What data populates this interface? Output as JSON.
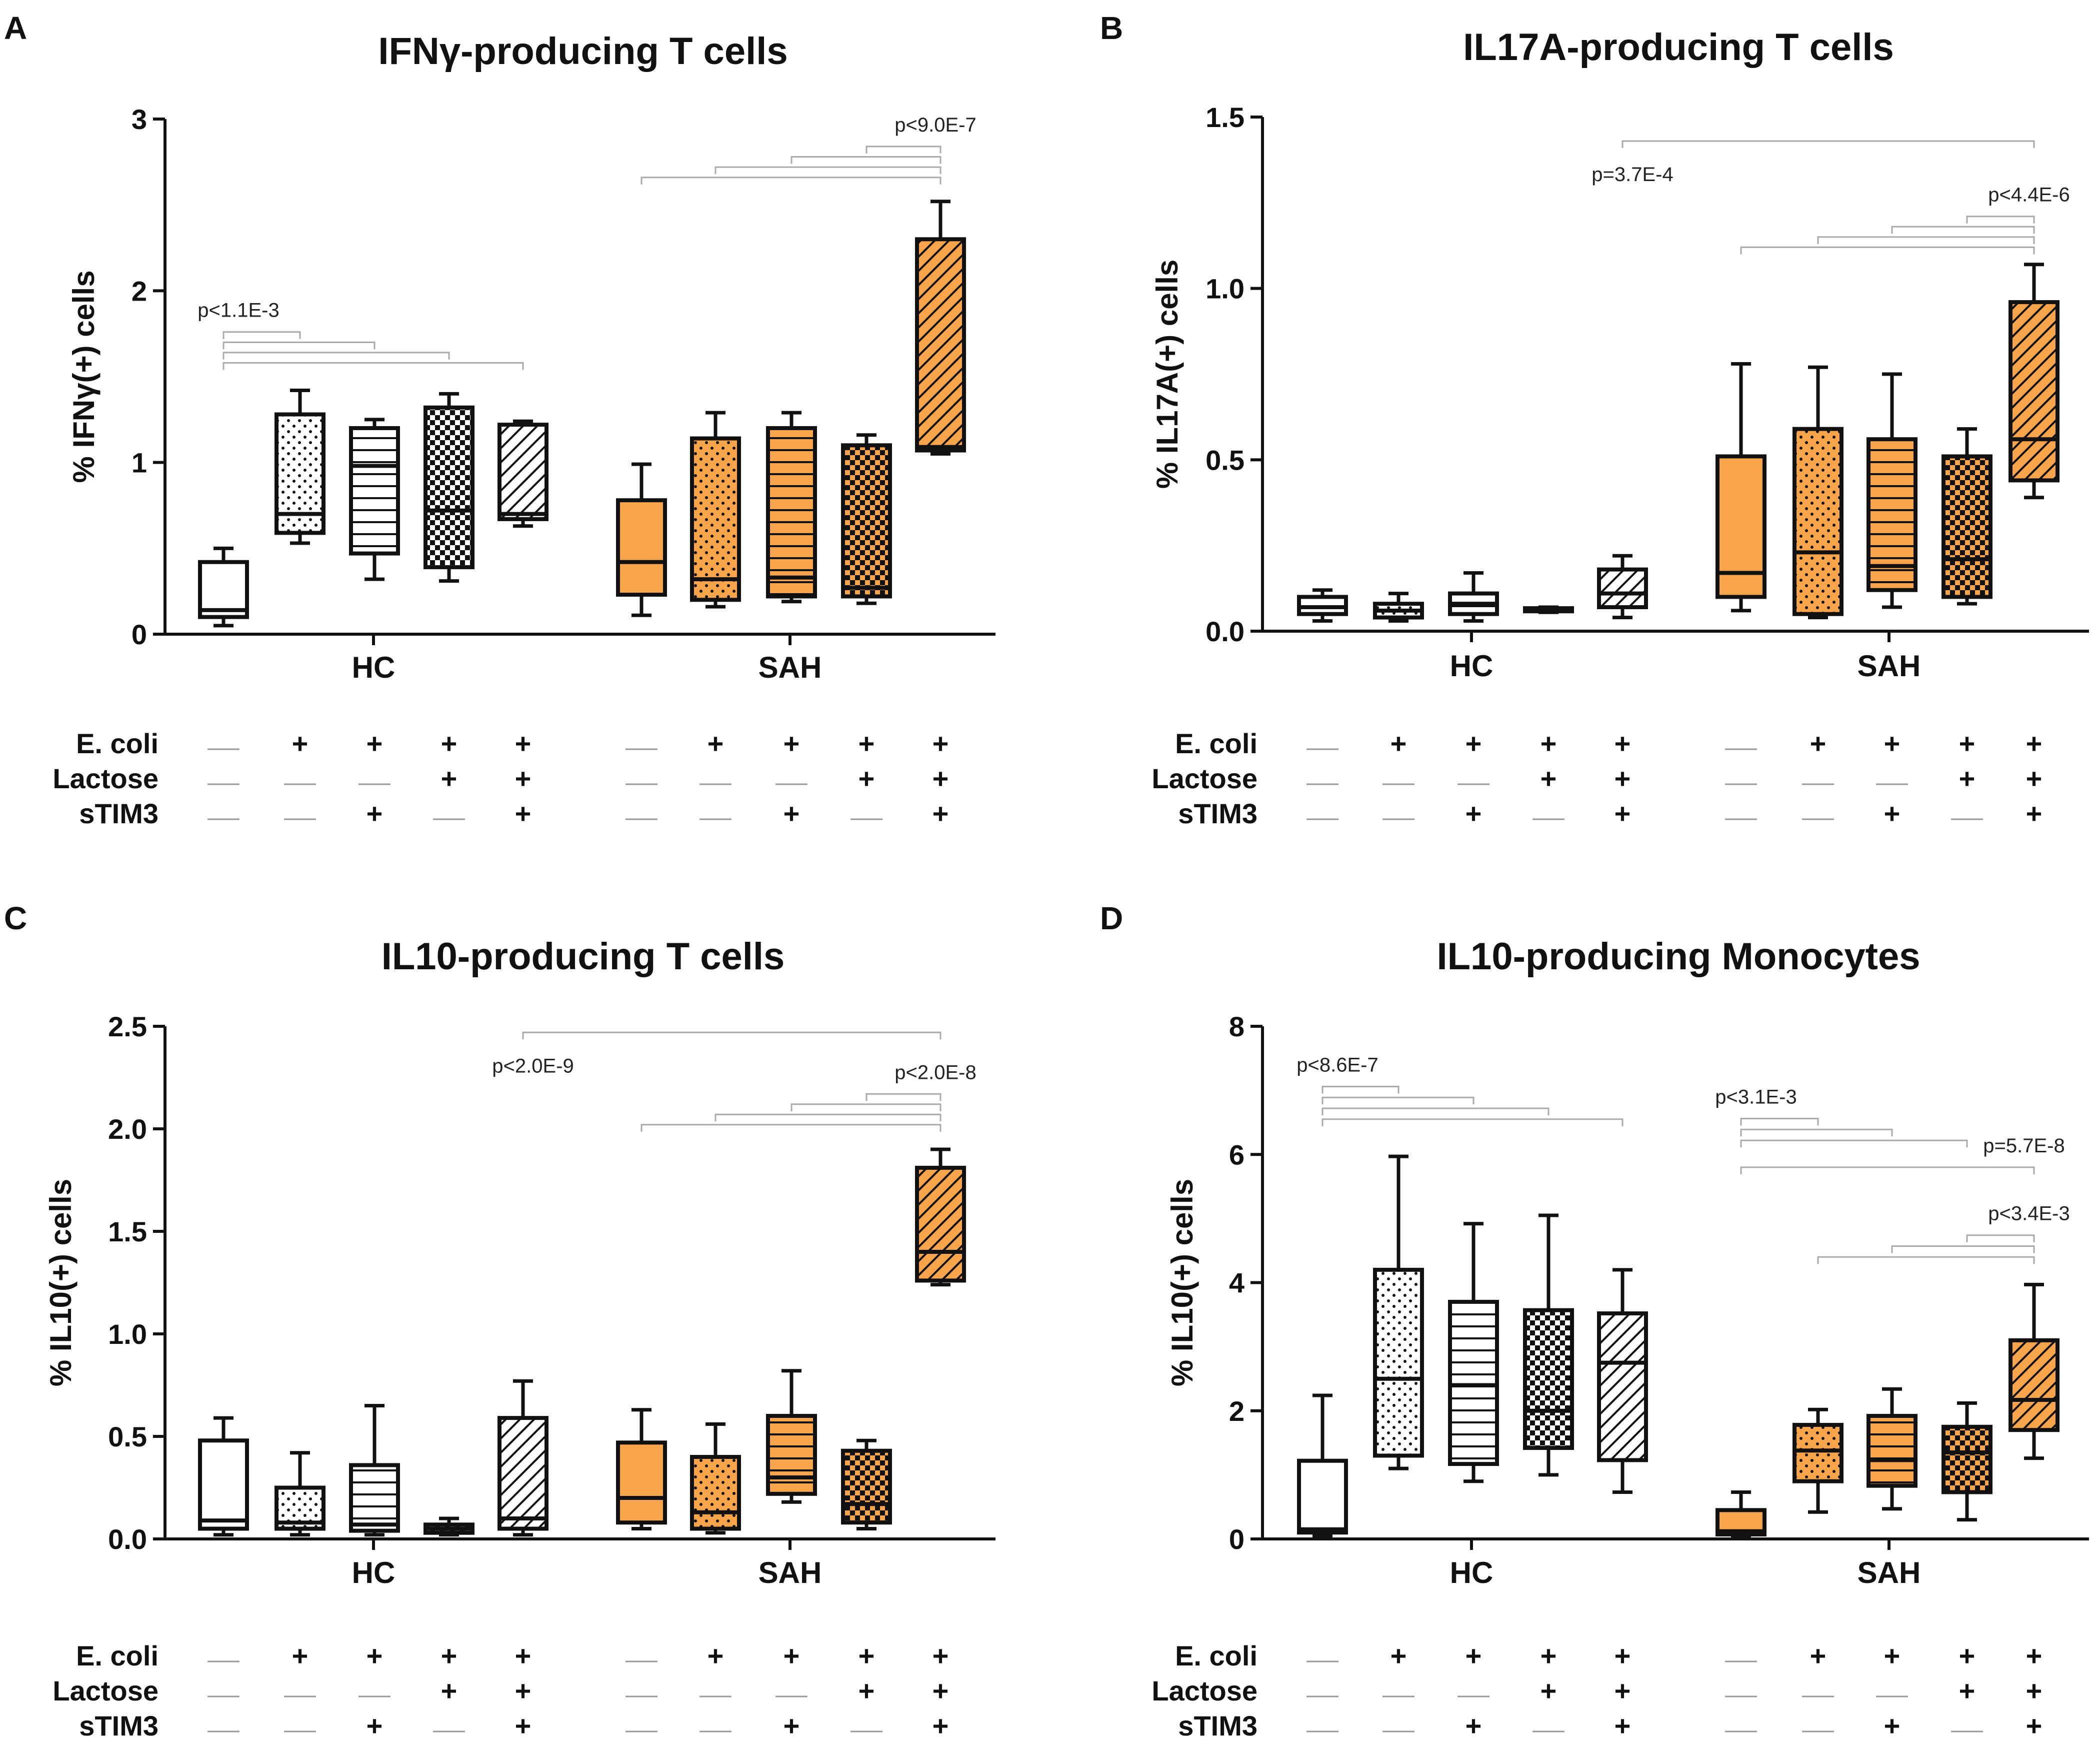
{
  "colors": {
    "hc_fill": "#ffffff",
    "sah_fill": "#f7a44a",
    "stroke": "#111111",
    "bracket": "#aaaaaa"
  },
  "treatments": {
    "labels": [
      "E. coli",
      "Lactose",
      "sTIM3"
    ],
    "symbols": {
      "plus": "+"
    },
    "matrix": [
      [
        0,
        1,
        1,
        1,
        1
      ],
      [
        0,
        0,
        0,
        1,
        1
      ],
      [
        0,
        0,
        1,
        0,
        1
      ]
    ]
  },
  "chart_data": [
    {
      "letter": "A",
      "type": "boxplot",
      "title": "IFNγ-producing T cells",
      "ylabel": "% IFNγ(+) cells",
      "ylim": [
        0,
        3
      ],
      "ticks": [
        0,
        1,
        2,
        3
      ],
      "tick_labels": [
        "0",
        "1",
        "2",
        "3"
      ],
      "groups": [
        "HC",
        "SAH"
      ],
      "patterns": [
        "open",
        "dots",
        "hlines",
        "check",
        "diag"
      ],
      "boxes": {
        "HC": [
          {
            "min": 0.05,
            "q1": 0.1,
            "median": 0.14,
            "q3": 0.42,
            "max": 0.5
          },
          {
            "min": 0.53,
            "q1": 0.59,
            "median": 0.7,
            "q3": 1.28,
            "max": 1.42
          },
          {
            "min": 0.32,
            "q1": 0.47,
            "median": 0.98,
            "q3": 1.2,
            "max": 1.25
          },
          {
            "min": 0.31,
            "q1": 0.39,
            "median": 0.72,
            "q3": 1.32,
            "max": 1.4
          },
          {
            "min": 0.63,
            "q1": 0.67,
            "median": 0.7,
            "q3": 1.22,
            "max": 1.24
          }
        ],
        "SAH": [
          {
            "min": 0.11,
            "q1": 0.23,
            "median": 0.42,
            "q3": 0.78,
            "max": 0.99
          },
          {
            "min": 0.16,
            "q1": 0.2,
            "median": 0.32,
            "q3": 1.14,
            "max": 1.29
          },
          {
            "min": 0.19,
            "q1": 0.22,
            "median": 0.33,
            "q3": 1.2,
            "max": 1.29
          },
          {
            "min": 0.18,
            "q1": 0.22,
            "median": 0.27,
            "q3": 1.1,
            "max": 1.16
          },
          {
            "min": 1.05,
            "q1": 1.07,
            "median": 1.09,
            "q3": 2.3,
            "max": 2.52
          }
        ]
      },
      "brackets": [
        {
          "group": "HC",
          "anchor": 0,
          "targets": [
            1,
            2,
            3,
            4
          ],
          "label": "p<1.1E-3",
          "label_pos": "start",
          "base": 1.58,
          "step": 0.06
        },
        {
          "group": "SAH",
          "anchor": 4,
          "targets": [
            3,
            2,
            1,
            0
          ],
          "label": "p<9.0E-7",
          "label_pos": "end",
          "base": 2.66,
          "step": 0.06
        }
      ]
    },
    {
      "letter": "B",
      "type": "boxplot",
      "title": "IL17A-producing T cells",
      "ylabel": "% IL17A(+) cells",
      "ylim": [
        0,
        1.5
      ],
      "ticks": [
        0,
        0.5,
        1.0,
        1.5
      ],
      "tick_labels": [
        "0.0",
        "0.5",
        "1.0",
        "1.5"
      ],
      "groups": [
        "HC",
        "SAH"
      ],
      "patterns": [
        "open",
        "dots",
        "hlines",
        "check",
        "diag"
      ],
      "boxes": {
        "HC": [
          {
            "min": 0.03,
            "q1": 0.05,
            "median": 0.07,
            "q3": 0.1,
            "max": 0.12
          },
          {
            "min": 0.03,
            "q1": 0.04,
            "median": 0.06,
            "q3": 0.08,
            "max": 0.11
          },
          {
            "min": 0.03,
            "q1": 0.05,
            "median": 0.08,
            "q3": 0.11,
            "max": 0.17
          },
          {
            "min": 0.055,
            "q1": 0.058,
            "median": 0.062,
            "q3": 0.067,
            "max": 0.07
          },
          {
            "min": 0.04,
            "q1": 0.07,
            "median": 0.11,
            "q3": 0.18,
            "max": 0.22
          }
        ],
        "SAH": [
          {
            "min": 0.06,
            "q1": 0.1,
            "median": 0.17,
            "q3": 0.51,
            "max": 0.78
          },
          {
            "min": 0.04,
            "q1": 0.05,
            "median": 0.23,
            "q3": 0.59,
            "max": 0.77
          },
          {
            "min": 0.07,
            "q1": 0.12,
            "median": 0.19,
            "q3": 0.56,
            "max": 0.75
          },
          {
            "min": 0.08,
            "q1": 0.1,
            "median": 0.21,
            "q3": 0.51,
            "max": 0.59
          },
          {
            "min": 0.39,
            "q1": 0.44,
            "median": 0.56,
            "q3": 0.96,
            "max": 1.07
          }
        ]
      },
      "brackets": [
        {
          "group": "SAH",
          "anchor": 4,
          "targets": [
            3,
            2,
            1,
            0
          ],
          "label": "p<4.4E-6",
          "label_pos": "end",
          "base": 1.12,
          "step": 0.03
        },
        {
          "cross": true,
          "from_group": "HC",
          "from": 4,
          "to_group": "SAH",
          "to": 4,
          "label": "p=3.7E-4",
          "label_pos": "start_below",
          "y": 1.43
        }
      ]
    },
    {
      "letter": "C",
      "type": "boxplot",
      "title": "IL10-producing T cells",
      "ylabel": "% IL10(+) cells",
      "ylim": [
        0,
        2.5
      ],
      "ticks": [
        0,
        0.5,
        1.0,
        1.5,
        2.0,
        2.5
      ],
      "tick_labels": [
        "0.0",
        "0.5",
        "1.0",
        "1.5",
        "2.0",
        "2.5"
      ],
      "groups": [
        "HC",
        "SAH"
      ],
      "patterns": [
        "open",
        "dots",
        "hlines",
        "check",
        "diag"
      ],
      "boxes": {
        "HC": [
          {
            "min": 0.02,
            "q1": 0.05,
            "median": 0.09,
            "q3": 0.48,
            "max": 0.59
          },
          {
            "min": 0.02,
            "q1": 0.05,
            "median": 0.08,
            "q3": 0.25,
            "max": 0.42
          },
          {
            "min": 0.02,
            "q1": 0.04,
            "median": 0.07,
            "q3": 0.36,
            "max": 0.65
          },
          {
            "min": 0.02,
            "q1": 0.03,
            "median": 0.05,
            "q3": 0.07,
            "max": 0.1
          },
          {
            "min": 0.02,
            "q1": 0.05,
            "median": 0.1,
            "q3": 0.59,
            "max": 0.77
          }
        ],
        "SAH": [
          {
            "min": 0.05,
            "q1": 0.08,
            "median": 0.2,
            "q3": 0.47,
            "max": 0.63
          },
          {
            "min": 0.03,
            "q1": 0.05,
            "median": 0.13,
            "q3": 0.4,
            "max": 0.56
          },
          {
            "min": 0.18,
            "q1": 0.22,
            "median": 0.3,
            "q3": 0.6,
            "max": 0.82
          },
          {
            "min": 0.05,
            "q1": 0.08,
            "median": 0.17,
            "q3": 0.43,
            "max": 0.48
          },
          {
            "min": 1.24,
            "q1": 1.26,
            "median": 1.4,
            "q3": 1.81,
            "max": 1.9
          }
        ]
      },
      "brackets": [
        {
          "group": "SAH",
          "anchor": 4,
          "targets": [
            3,
            2,
            1,
            0
          ],
          "label": "p<2.0E-8",
          "label_pos": "end",
          "base": 2.02,
          "step": 0.05
        },
        {
          "cross": true,
          "from_group": "HC",
          "from": 4,
          "to_group": "SAH",
          "to": 4,
          "label": "p<2.0E-9",
          "label_pos": "start_below",
          "y": 2.47
        }
      ]
    },
    {
      "letter": "D",
      "type": "boxplot",
      "title": "IL10-producing Monocytes",
      "ylabel": "% IL10(+) cells",
      "ylim": [
        0,
        8
      ],
      "ticks": [
        0,
        2,
        4,
        6,
        8
      ],
      "tick_labels": [
        "0",
        "2",
        "4",
        "6",
        "8"
      ],
      "groups": [
        "HC",
        "SAH"
      ],
      "patterns": [
        "open",
        "dots",
        "hlines",
        "check",
        "diag"
      ],
      "boxes": {
        "HC": [
          {
            "min": 0.05,
            "q1": 0.1,
            "median": 0.15,
            "q3": 1.22,
            "max": 2.24
          },
          {
            "min": 1.1,
            "q1": 1.3,
            "median": 2.5,
            "q3": 4.2,
            "max": 5.97
          },
          {
            "min": 0.9,
            "q1": 1.17,
            "median": 2.4,
            "q3": 3.7,
            "max": 4.92
          },
          {
            "min": 1.0,
            "q1": 1.42,
            "median": 2.0,
            "q3": 3.57,
            "max": 5.05
          },
          {
            "min": 0.73,
            "q1": 1.23,
            "median": 2.75,
            "q3": 3.52,
            "max": 4.2
          }
        ],
        "SAH": [
          {
            "min": 0.04,
            "q1": 0.07,
            "median": 0.12,
            "q3": 0.45,
            "max": 0.73
          },
          {
            "min": 0.42,
            "q1": 0.9,
            "median": 1.38,
            "q3": 1.78,
            "max": 2.02
          },
          {
            "min": 0.47,
            "q1": 0.83,
            "median": 1.23,
            "q3": 1.92,
            "max": 2.34
          },
          {
            "min": 0.3,
            "q1": 0.73,
            "median": 1.35,
            "q3": 1.75,
            "max": 2.12
          },
          {
            "min": 1.26,
            "q1": 1.7,
            "median": 2.17,
            "q3": 3.1,
            "max": 3.97
          }
        ]
      },
      "brackets": [
        {
          "group": "HC",
          "anchor": 0,
          "targets": [
            1,
            2,
            3,
            4
          ],
          "label": "p<8.6E-7",
          "label_pos": "start",
          "base": 6.55,
          "step": 0.17
        },
        {
          "group": "SAH",
          "anchor": 0,
          "targets": [
            1,
            2,
            3
          ],
          "label": "p<3.1E-3",
          "label_pos": "start",
          "base": 6.22,
          "step": 0.17
        },
        {
          "cross": true,
          "from_group": "SAH",
          "from": 0,
          "to_group": "SAH",
          "to": 4,
          "label": "p=5.7E-8",
          "label_pos": "end",
          "y": 5.8
        },
        {
          "group": "SAH",
          "anchor": 4,
          "targets": [
            3,
            2,
            1
          ],
          "label": "p<3.4E-3",
          "label_pos": "end",
          "base": 4.4,
          "step": 0.17
        }
      ]
    }
  ]
}
